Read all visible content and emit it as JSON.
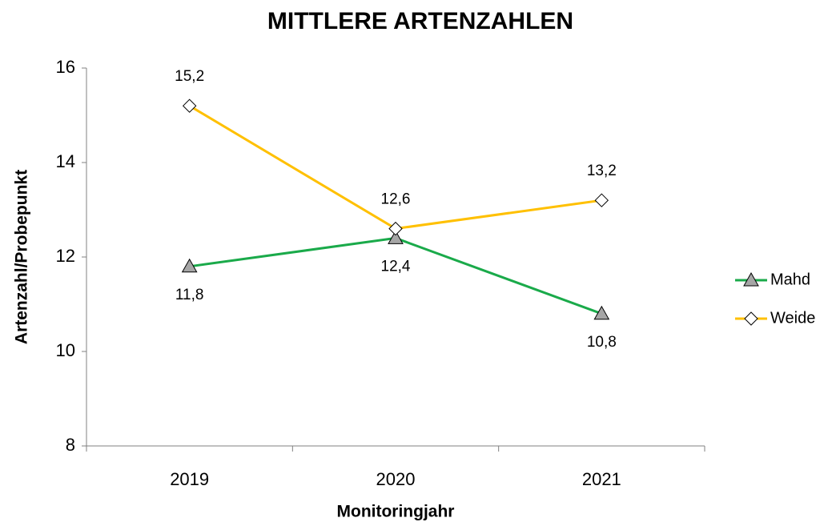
{
  "chart_data": {
    "type": "line",
    "title": "MITTLERE ARTENZAHLEN",
    "xlabel": "Monitoringjahr",
    "ylabel": "Artenzahl/Probepunkt",
    "categories": [
      "2019",
      "2020",
      "2021"
    ],
    "series": [
      {
        "name": "Mahd",
        "color": "#1aaa4a",
        "marker": "triangle",
        "marker_color": "#a6a6a6",
        "values": [
          11.8,
          12.4,
          10.8
        ],
        "value_labels": [
          "11,8",
          "12,4",
          "10,8"
        ]
      },
      {
        "name": "Weide",
        "color": "#ffc000",
        "marker": "diamond",
        "marker_color": "#ffffff",
        "values": [
          15.2,
          12.6,
          13.2
        ],
        "value_labels": [
          "15,2",
          "12,6",
          "13,2"
        ]
      }
    ],
    "ylim": [
      8,
      16
    ],
    "yticks": [
      8,
      10,
      12,
      14,
      16
    ],
    "grid": false,
    "legend": "right"
  }
}
